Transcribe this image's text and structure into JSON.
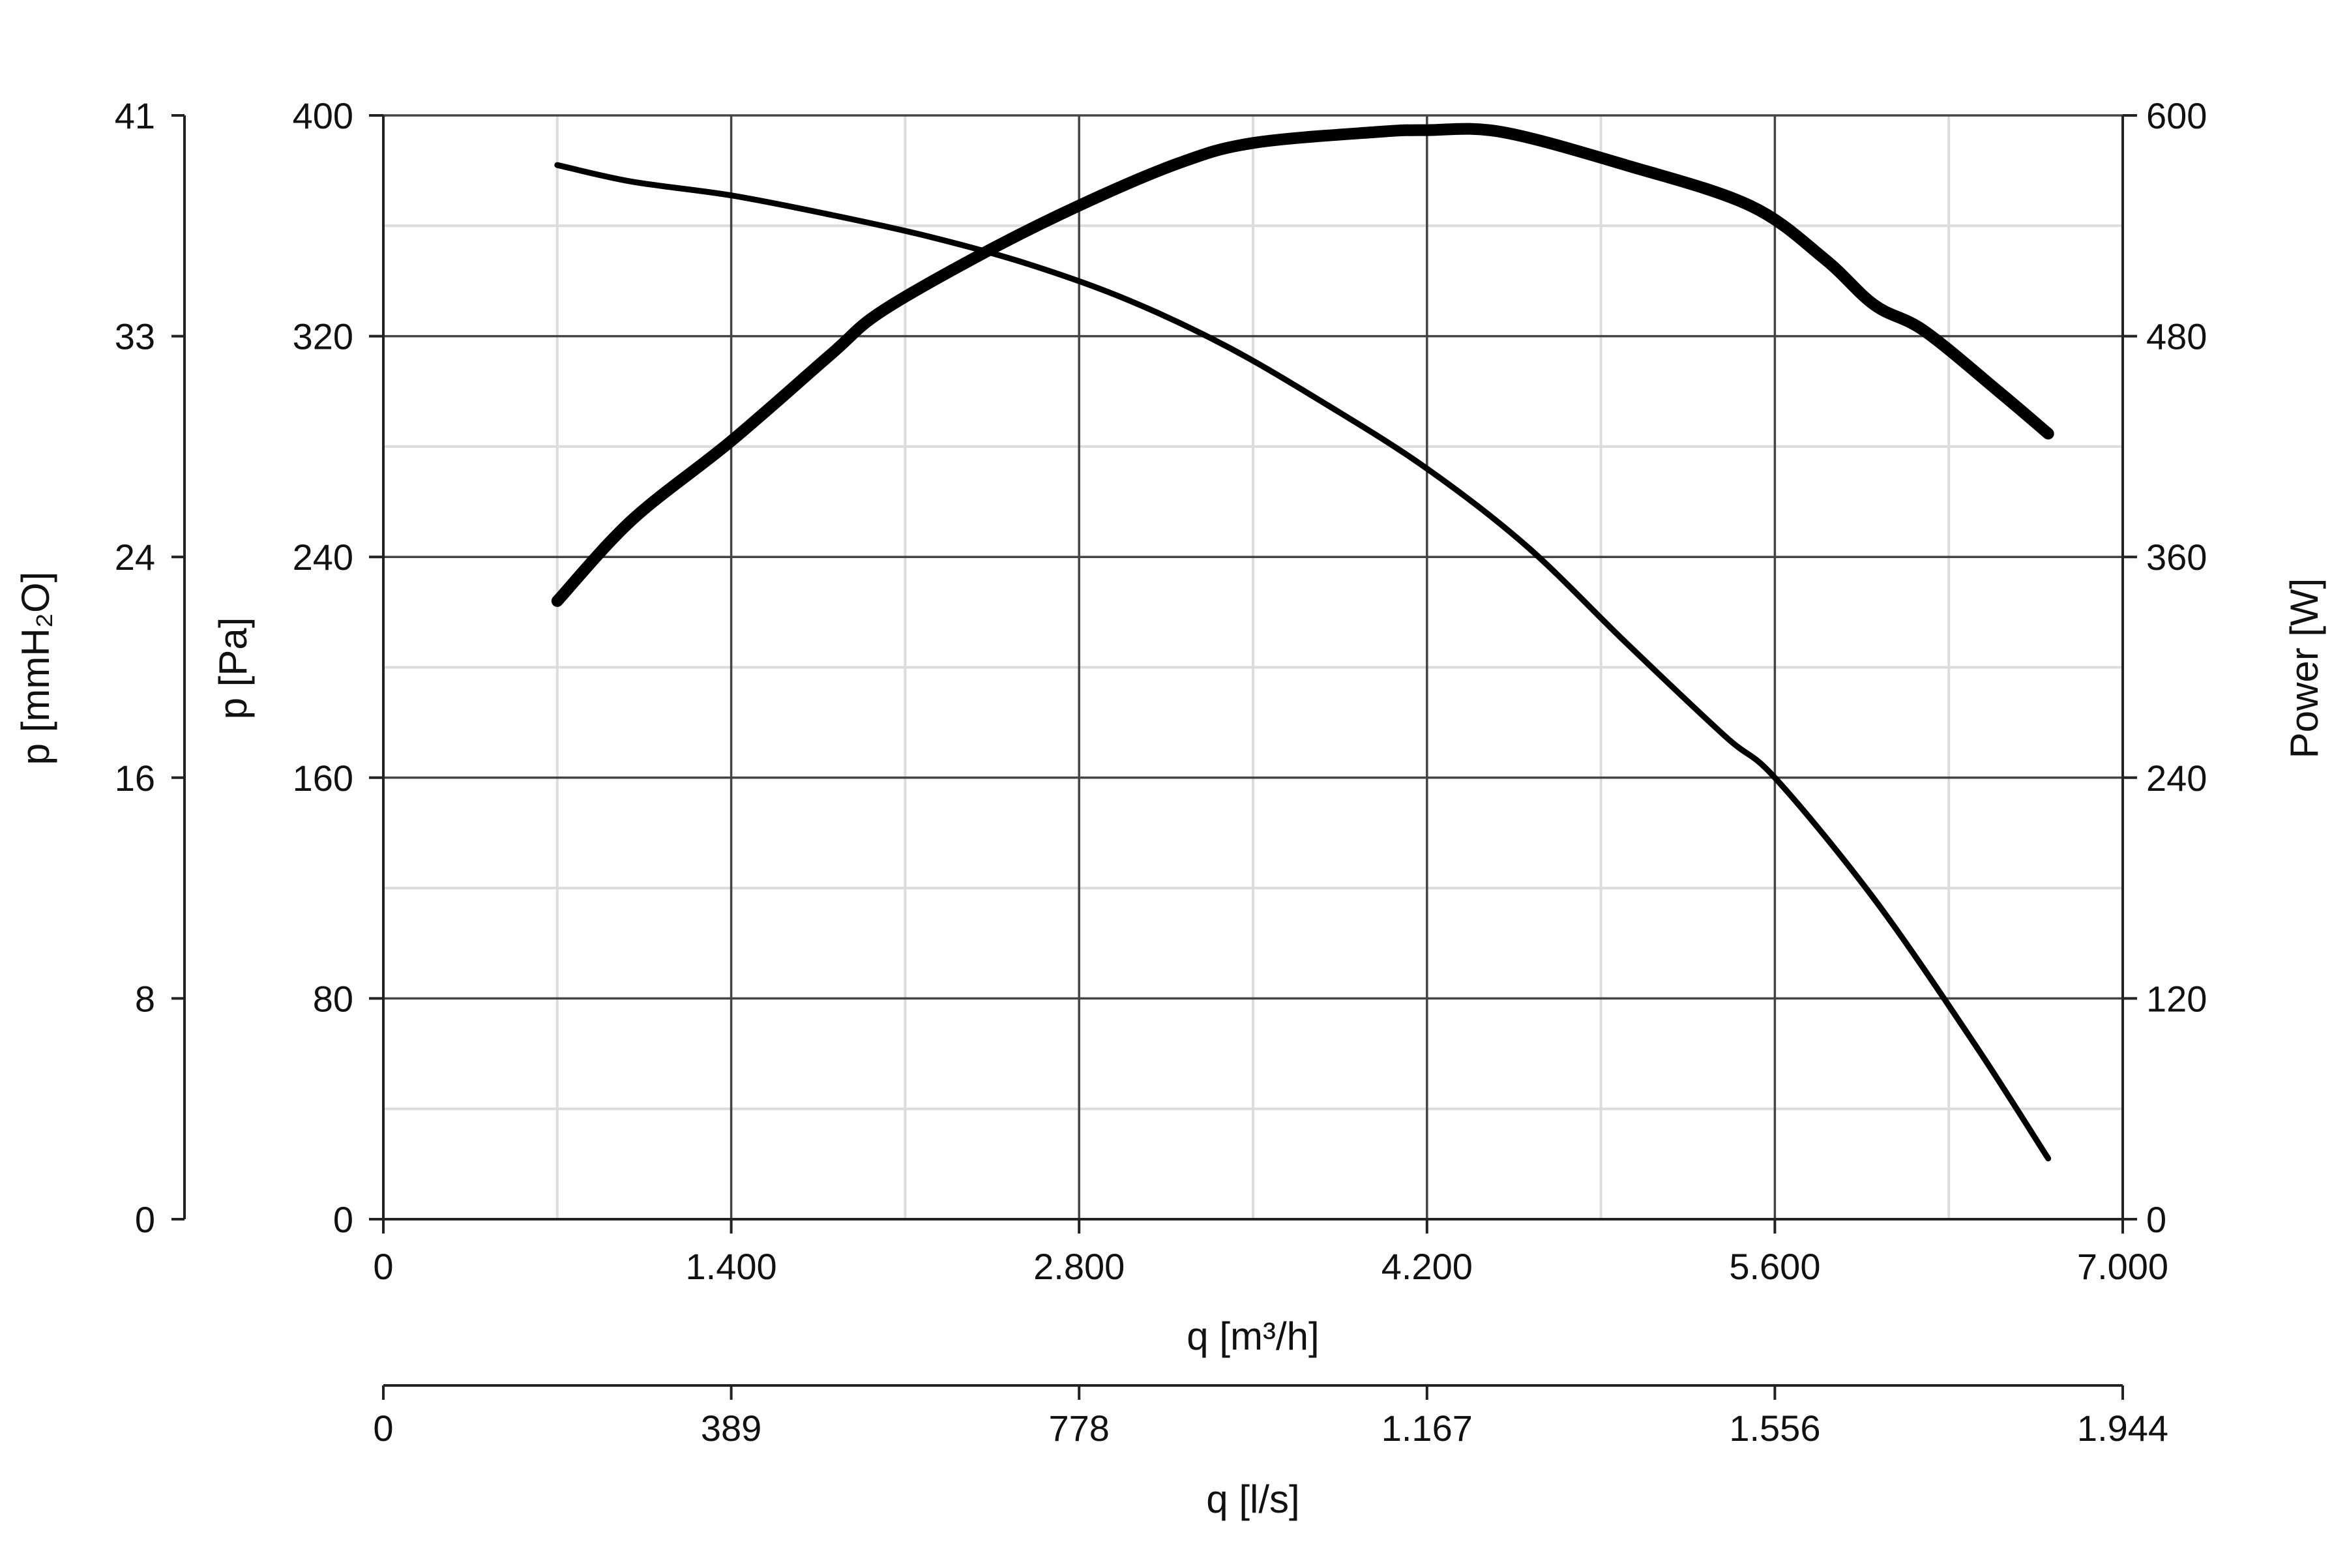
{
  "chart_data": {
    "type": "line",
    "x_axis": {
      "label": "q [m³/h]",
      "range": [
        0,
        7000
      ],
      "ticks": [
        0,
        1400,
        2800,
        4200,
        5600,
        7000
      ],
      "tick_labels": [
        "0",
        "1.400",
        "2.800",
        "4.200",
        "5.600",
        "7.000"
      ]
    },
    "x2_axis": {
      "label": "q [l/s]",
      "range": [
        0,
        1944
      ],
      "tick_labels": [
        "0",
        "389",
        "778",
        "1.167",
        "1.556",
        "1.944"
      ]
    },
    "y_axis": {
      "label": "p [Pa]",
      "range": [
        0,
        400
      ],
      "ticks": [
        0,
        80,
        160,
        240,
        320,
        400
      ],
      "tick_labels": [
        "0",
        "80",
        "160",
        "240",
        "320",
        "400"
      ]
    },
    "y_outer_axis": {
      "label": "p [mmH₂O]",
      "range": [
        0,
        41
      ],
      "tick_labels": [
        "0",
        "8",
        "16",
        "24",
        "33",
        "41"
      ]
    },
    "y2_axis": {
      "label": "Power [W]",
      "range": [
        0,
        600
      ],
      "tick_labels": [
        "0",
        "120",
        "240",
        "360",
        "480",
        "600"
      ]
    },
    "grid": true,
    "series": [
      {
        "axis": "y",
        "color": "#000000",
        "x": [
          700,
          1000,
          1400,
          1800,
          2200,
          2600,
          3000,
          3400,
          3800,
          4200,
          4600,
          5000,
          5400,
          5600,
          6000,
          6400,
          6700
        ],
        "values": [
          382,
          376,
          371,
          364,
          356,
          346,
          333,
          316,
          295,
          272,
          244,
          209,
          175,
          160,
          116,
          64,
          22
        ]
      },
      {
        "axis": "y2",
        "color": "#000000",
        "x": [
          700,
          1000,
          1400,
          1800,
          2000,
          2400,
          2800,
          3200,
          3500,
          4000,
          4200,
          4500,
          5000,
          5500,
          5800,
          6000,
          6200,
          6500,
          6700
        ],
        "values": [
          336,
          380,
          423,
          470,
          493,
          524,
          551,
          574,
          585,
          591,
          592,
          591,
          573,
          551,
          522,
          497,
          483,
          450,
          427
        ]
      }
    ]
  }
}
